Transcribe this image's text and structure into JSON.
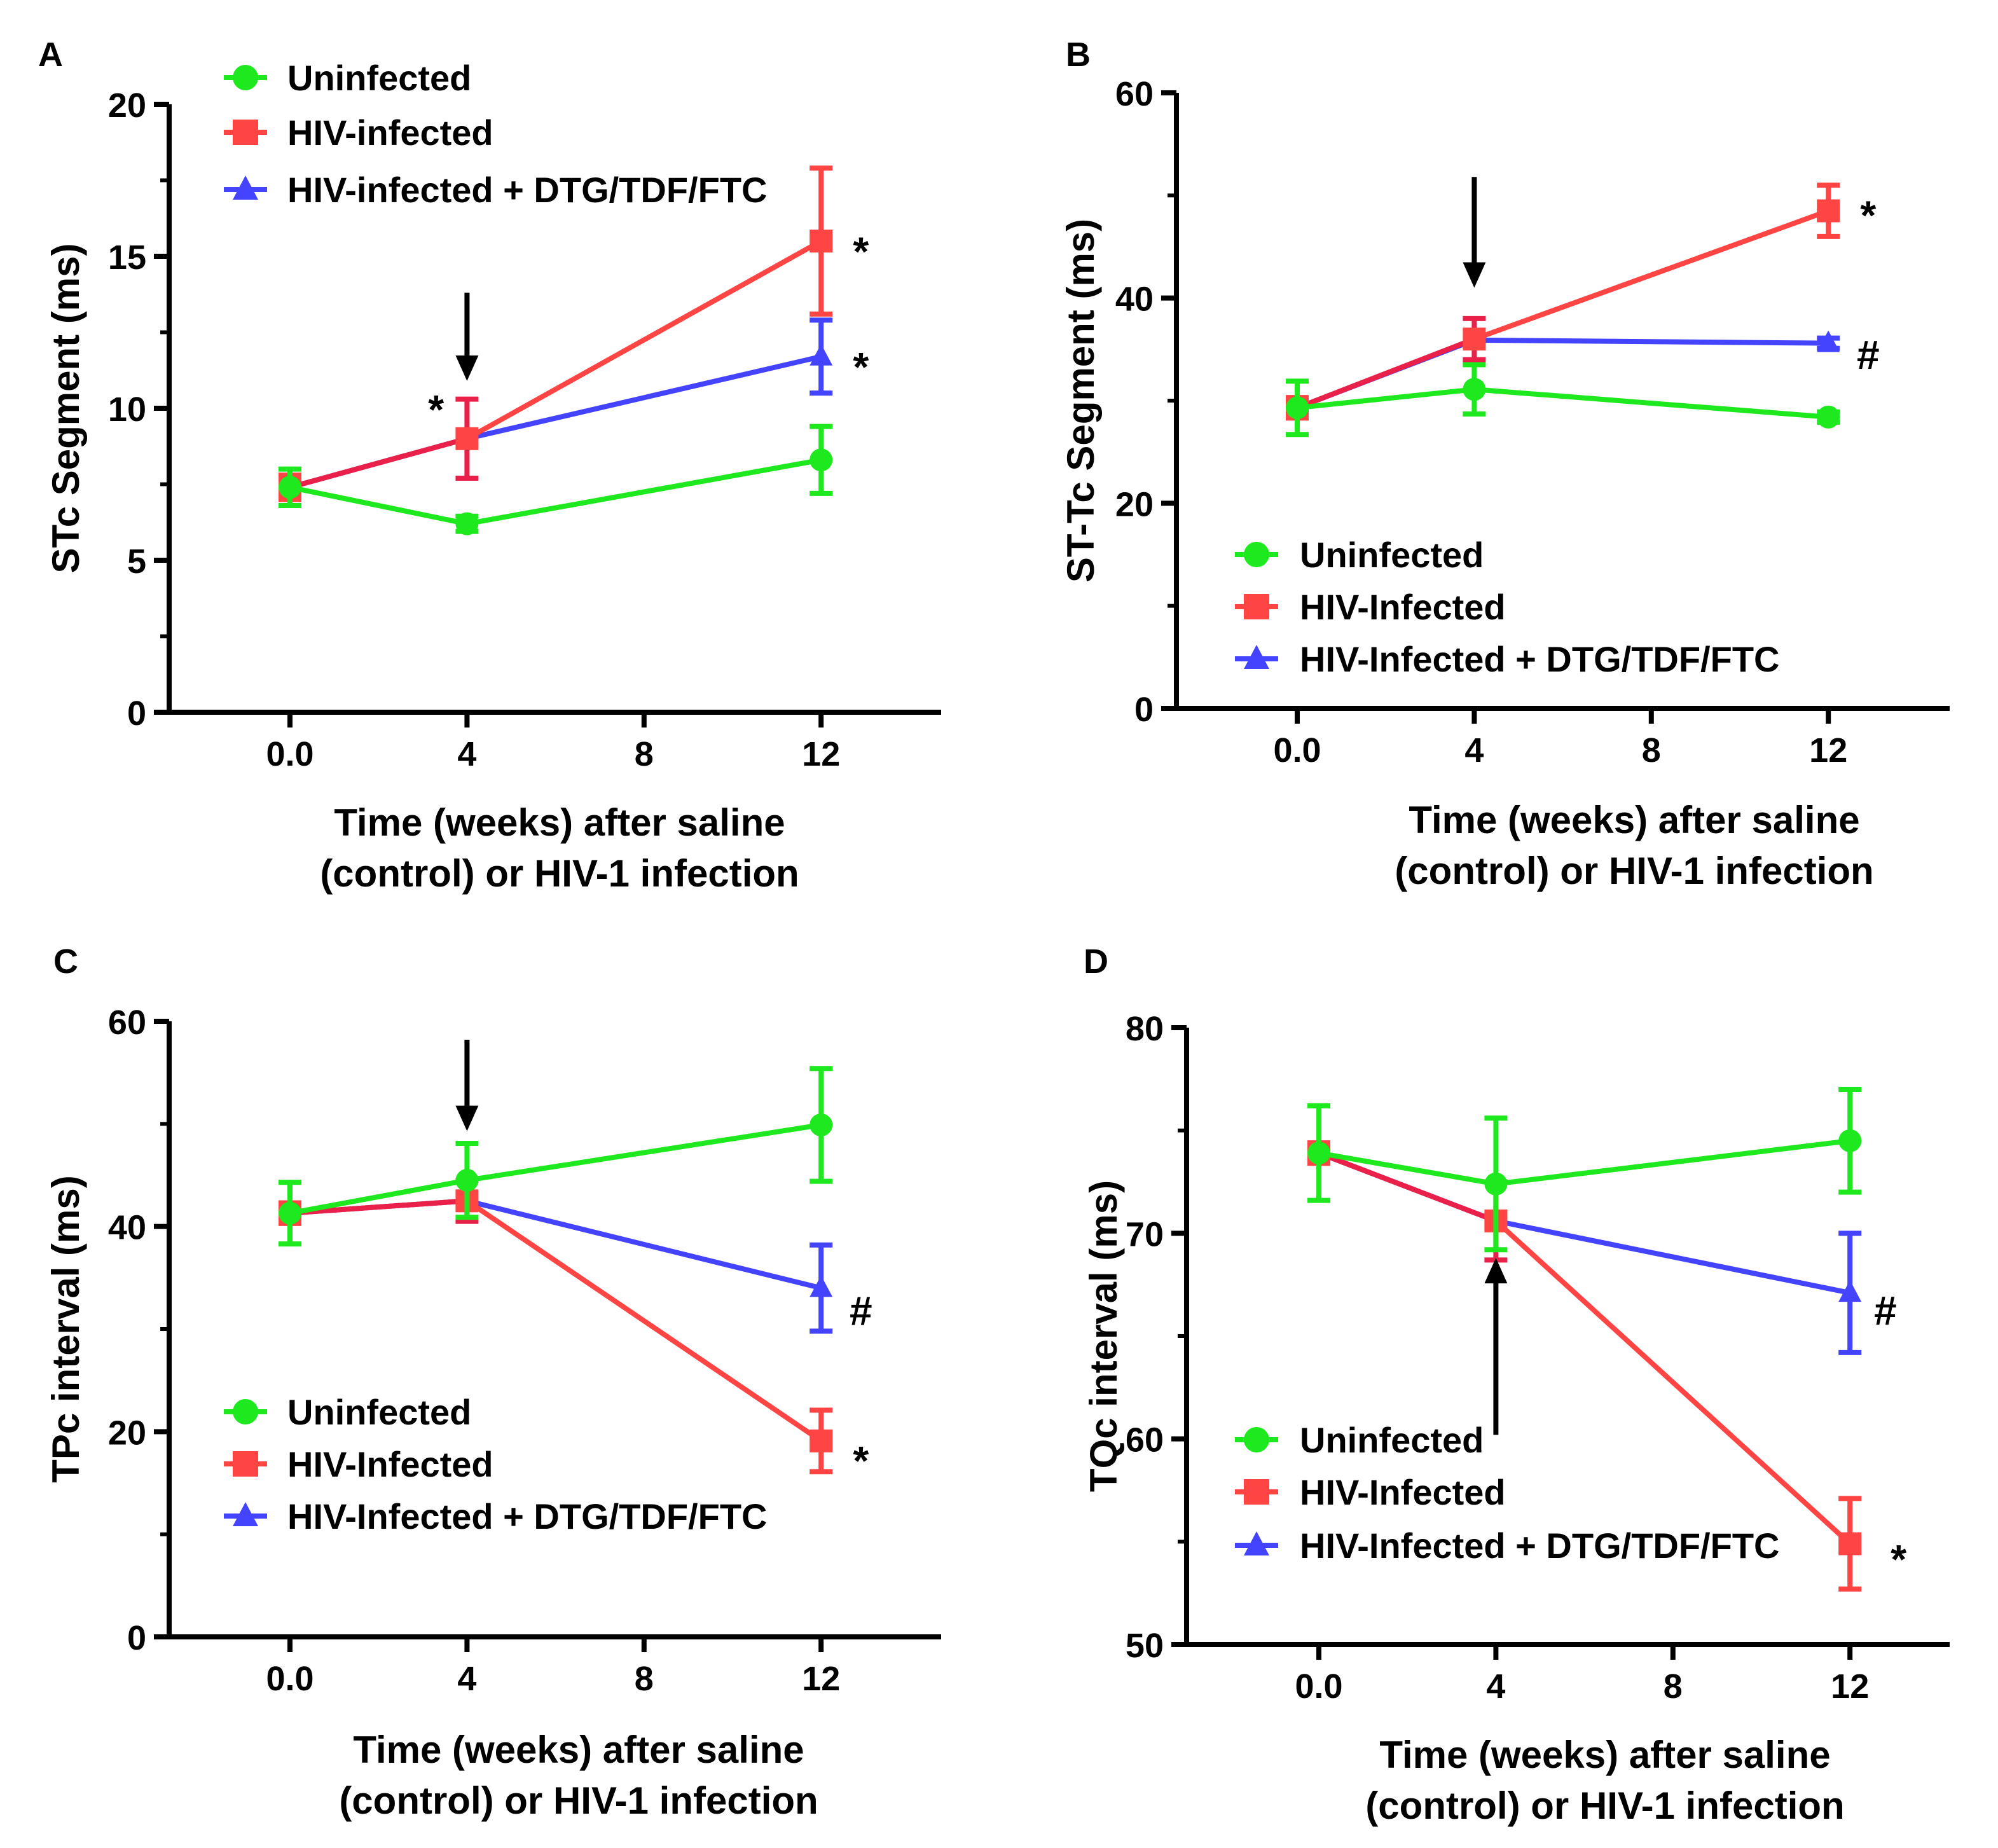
{
  "colors": {
    "uninfected": "#1ee81e",
    "hiv": "#ff4444",
    "dtg": "#4444ff",
    "axis": "#000000",
    "hiv_err_early": "#e8204a"
  },
  "chart_data": [
    {
      "panel": "A",
      "type": "line",
      "ylabel": "STc Segment (ms)",
      "xlabel": [
        "Time (weeks) after saline",
        "(control) or HIV-1 infection"
      ],
      "xticks": [
        "0.0",
        "4",
        "8",
        "12"
      ],
      "xtick_values": [
        0,
        4,
        8,
        12
      ],
      "yticks": [
        "0",
        "5",
        "10",
        "15",
        "20"
      ],
      "ytick_values": [
        0,
        5,
        10,
        15,
        20
      ],
      "ylim": [
        0,
        20
      ],
      "xlim": [
        -2.7,
        14.7
      ],
      "legend": {
        "placement": "top-left",
        "entries": [
          "Uninfected",
          "HIV-infected",
          "HIV-infected + DTG/TDF/FTC"
        ]
      },
      "series": [
        {
          "name": "Uninfected",
          "marker": "circle",
          "x": [
            0,
            4,
            12
          ],
          "y": [
            7.4,
            6.2,
            8.3
          ],
          "err": [
            0.6,
            0.25,
            1.1
          ]
        },
        {
          "name": "HIV-infected",
          "marker": "square",
          "x": [
            0,
            4,
            12
          ],
          "y": [
            7.4,
            9.0,
            15.5
          ],
          "err": [
            0.4,
            1.3,
            2.4
          ]
        },
        {
          "name": "HIV-infected + DTG/TDF/FTC",
          "marker": "triangle",
          "x": [
            4,
            12
          ],
          "y": [
            9.0,
            11.7
          ],
          "err": [
            0,
            1.2
          ]
        }
      ],
      "annotations": [
        {
          "text": "*",
          "x": 3.3,
          "y": 10.0
        },
        {
          "text": "*",
          "x": 12.9,
          "y": 15.2
        },
        {
          "text": "*",
          "x": 12.9,
          "y": 11.4
        }
      ],
      "arrow": {
        "x": 4,
        "from": 13.8,
        "to": 10.9
      }
    },
    {
      "panel": "B",
      "type": "line",
      "ylabel": "ST-Tc Segment (ms)",
      "xlabel": [
        "Time (weeks) after saline",
        "(control) or HIV-1 infection"
      ],
      "xticks": [
        "0.0",
        "4",
        "8",
        "12"
      ],
      "xtick_values": [
        0,
        4,
        8,
        12
      ],
      "yticks": [
        "0",
        "20",
        "40",
        "60"
      ],
      "ytick_values": [
        0,
        20,
        40,
        60
      ],
      "ylim": [
        0,
        60
      ],
      "xlim": [
        -2.7,
        14.7
      ],
      "legend": {
        "placement": "bottom-left",
        "entries": [
          "Uninfected",
          "HIV-Infected",
          "HIV-Infected + DTG/TDF/FTC"
        ]
      },
      "series": [
        {
          "name": "Uninfected",
          "marker": "circle",
          "x": [
            0,
            4,
            12
          ],
          "y": [
            29.3,
            31.1,
            28.4
          ],
          "err": [
            2.6,
            2.4,
            0.5
          ]
        },
        {
          "name": "HIV-Infected",
          "marker": "square",
          "x": [
            0,
            4,
            12
          ],
          "y": [
            29.3,
            36.0,
            48.5
          ],
          "err": [
            1.0,
            2.0,
            2.5
          ]
        },
        {
          "name": "HIV-Infected + DTG/TDF/FTC",
          "marker": "triangle",
          "x": [
            4,
            12
          ],
          "y": [
            35.9,
            35.6
          ],
          "err": [
            0,
            0.5
          ]
        }
      ],
      "annotations": [
        {
          "text": "*",
          "x": 12.9,
          "y": 48.2
        },
        {
          "text": "#",
          "x": 12.9,
          "y": 34.6
        }
      ],
      "arrow": {
        "x": 4,
        "from": 51.8,
        "to": 41.0
      }
    },
    {
      "panel": "C",
      "type": "line",
      "ylabel": "TPc interval (ms)",
      "xlabel": [
        "Time (weeks) after saline",
        "(control) or HIV-1 infection"
      ],
      "xticks": [
        "0.0",
        "4",
        "8",
        "12"
      ],
      "xtick_values": [
        0,
        4,
        8,
        12
      ],
      "yticks": [
        "0",
        "20",
        "40",
        "60"
      ],
      "ytick_values": [
        0,
        20,
        40,
        60
      ],
      "ylim": [
        0,
        60
      ],
      "xlim": [
        -2.7,
        14.7
      ],
      "legend": {
        "placement": "bottom-left",
        "entries": [
          "Uninfected",
          "HIV-Infected",
          "HIV-Infected + DTG/TDF/FTC"
        ]
      },
      "series": [
        {
          "name": "Uninfected",
          "marker": "circle",
          "x": [
            0,
            4,
            12
          ],
          "y": [
            41.3,
            44.5,
            49.9
          ],
          "err": [
            3.0,
            3.6,
            5.5
          ]
        },
        {
          "name": "HIV-Infected",
          "marker": "square",
          "x": [
            0,
            4,
            12
          ],
          "y": [
            41.3,
            42.5,
            19.1
          ],
          "err": [
            1.0,
            2.0,
            3.0
          ]
        },
        {
          "name": "HIV-Infected + DTG/TDF/FTC",
          "marker": "triangle",
          "x": [
            4,
            12
          ],
          "y": [
            42.5,
            34.0
          ],
          "err": [
            0,
            4.2
          ]
        }
      ],
      "annotations": [
        {
          "text": "#",
          "x": 12.9,
          "y": 31.9
        },
        {
          "text": "*",
          "x": 12.9,
          "y": 17.3
        }
      ],
      "arrow": {
        "x": 4,
        "from": 58.2,
        "to": 49.3
      }
    },
    {
      "panel": "D",
      "type": "line",
      "ylabel": "TQc interval (ms)",
      "xlabel": [
        "Time (weeks) after saline",
        "(control) or HIV-1 infection"
      ],
      "xticks": [
        "0.0",
        "4",
        "8",
        "12"
      ],
      "xtick_values": [
        0,
        4,
        8,
        12
      ],
      "yticks": [
        "50",
        "60",
        "70",
        "80"
      ],
      "ytick_values": [
        50,
        60,
        70,
        80
      ],
      "ylim": [
        50,
        80
      ],
      "xlim": [
        -3.0,
        14.3
      ],
      "legend": {
        "placement": "bottom-left",
        "entries": [
          "Uninfected",
          "HIV-Infected",
          "HIV-Infected + DTG/TDF/FTC"
        ]
      },
      "series": [
        {
          "name": "Uninfected",
          "marker": "circle",
          "x": [
            0,
            4,
            12
          ],
          "y": [
            73.9,
            72.4,
            74.5
          ],
          "err": [
            2.3,
            3.2,
            2.5
          ]
        },
        {
          "name": "HIV-Infected",
          "marker": "square",
          "x": [
            0,
            4,
            12
          ],
          "y": [
            73.9,
            70.6,
            54.9
          ],
          "err": [
            0.5,
            1.9,
            2.2
          ]
        },
        {
          "name": "HIV-Infected + DTG/TDF/FTC",
          "marker": "triangle",
          "x": [
            4,
            12
          ],
          "y": [
            70.6,
            67.1
          ],
          "err": [
            0,
            2.9
          ]
        }
      ],
      "annotations": [
        {
          "text": "#",
          "x": 12.8,
          "y": 66.3
        },
        {
          "text": "*",
          "x": 13.1,
          "y": 54.2
        }
      ],
      "arrow": {
        "x": 4,
        "from": 60.2,
        "to": 68.8,
        "direction": "up"
      }
    }
  ]
}
